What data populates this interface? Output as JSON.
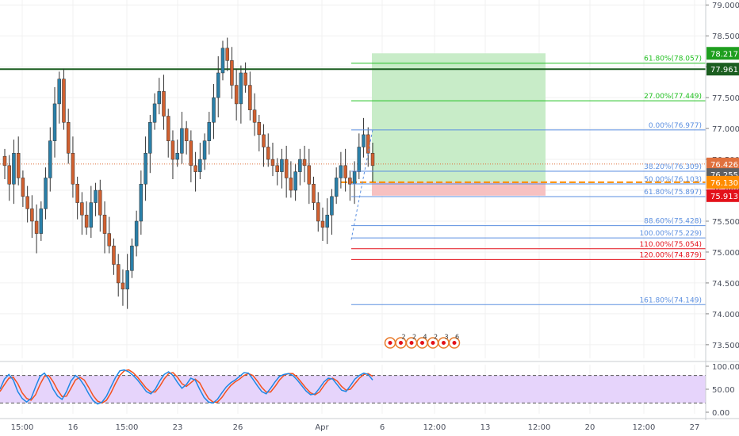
{
  "chart_data": {
    "type": "candlestick",
    "price_axis": {
      "labels": [
        "79.000",
        "78.500",
        "78.000",
        "77.500",
        "77.000",
        "76.500",
        "76.000",
        "75.500",
        "75.000",
        "74.500",
        "74.000",
        "73.500"
      ],
      "values": [
        79.0,
        78.5,
        78.0,
        77.5,
        77.0,
        76.5,
        76.0,
        75.5,
        75.0,
        74.5,
        74.0,
        73.5
      ],
      "range": [
        73.28,
        79.08
      ]
    },
    "time_axis": {
      "labels": [
        "15:00",
        "16",
        "15:00",
        "23",
        "26",
        "Apr",
        "6",
        "12:00",
        "13",
        "12:00",
        "20",
        "12:00",
        "27"
      ]
    },
    "price_tags": [
      {
        "label": "78.217",
        "value": 78.217,
        "color": "#1e9e1e"
      },
      {
        "label": "77.961",
        "value": 77.961,
        "color": "#1b5e20"
      },
      {
        "label": "76.426",
        "value": 76.426,
        "color": "#e0713e"
      },
      {
        "label": "76.255",
        "value": 76.255,
        "color": "#5f6062"
      },
      {
        "label": "76.130",
        "value": 76.13,
        "color": "#ff8c00"
      },
      {
        "label": "75.913",
        "value": 75.913,
        "color": "#e3111a"
      }
    ],
    "fib_levels": [
      {
        "label": "161.80%(74.149)",
        "value": 74.149,
        "color": "#5b8fe0"
      },
      {
        "label": "120.00%(74.879)",
        "value": 74.879,
        "color": "#e3111a"
      },
      {
        "label": "110.00%(75.054)",
        "value": 75.054,
        "color": "#e3111a"
      },
      {
        "label": "100.00%(75.229)",
        "value": 75.229,
        "color": "#5b8fe0"
      },
      {
        "label": "88.60%(75.428)",
        "value": 75.428,
        "color": "#5b8fe0"
      },
      {
        "label": "61.80%(75.897)",
        "value": 75.897,
        "color": "#5b8fe0"
      },
      {
        "label": "50.00%(76.103)",
        "value": 76.103,
        "color": "#5b8fe0"
      },
      {
        "label": "38.20%(76.309)",
        "value": 76.309,
        "color": "#5b8fe0"
      },
      {
        "label": "0.00%(76.977)",
        "value": 76.977,
        "color": "#5b8fe0"
      },
      {
        "label": "27.00%(77.449)",
        "value": 77.449,
        "color": "#22c022"
      },
      {
        "label": "61.80%(78.057)",
        "value": 78.057,
        "color": "#22c022"
      }
    ],
    "resistance_line": 77.961,
    "current_price": 76.426,
    "position": {
      "entry": 76.13,
      "stop": 75.913,
      "target": 78.217
    },
    "oscillator": {
      "labels": [
        "100.00",
        "50.00",
        "0.00"
      ],
      "values": [
        100,
        50,
        0
      ],
      "upper_band": 80,
      "lower_band": 20,
      "k": [
        50,
        72,
        82,
        70,
        45,
        30,
        22,
        30,
        55,
        78,
        85,
        72,
        50,
        35,
        28,
        45,
        68,
        80,
        72,
        58,
        40,
        25,
        18,
        22,
        35,
        55,
        75,
        90,
        92,
        88,
        80,
        70,
        58,
        45,
        40,
        50,
        68,
        82,
        88,
        80,
        65,
        52,
        60,
        74,
        70,
        50,
        32,
        22,
        20,
        28,
        42,
        55,
        64,
        70,
        78,
        86,
        85,
        72,
        58,
        45,
        40,
        52,
        66,
        78,
        82,
        84,
        80,
        70,
        58,
        46,
        38,
        40,
        52,
        66,
        74,
        72,
        60,
        48,
        45,
        58,
        72,
        80,
        85,
        82,
        70
      ],
      "d": [
        45,
        60,
        74,
        76,
        62,
        42,
        30,
        26,
        38,
        60,
        78,
        80,
        66,
        48,
        34,
        35,
        52,
        70,
        76,
        70,
        54,
        36,
        24,
        20,
        26,
        42,
        62,
        80,
        90,
        92,
        86,
        76,
        64,
        52,
        44,
        44,
        56,
        72,
        84,
        86,
        76,
        62,
        56,
        64,
        72,
        64,
        46,
        30,
        22,
        22,
        32,
        46,
        58,
        66,
        72,
        80,
        84,
        80,
        68,
        54,
        44,
        44,
        56,
        70,
        80,
        84,
        84,
        76,
        64,
        52,
        42,
        38,
        44,
        58,
        70,
        74,
        68,
        56,
        48,
        50,
        62,
        74,
        82,
        84,
        78
      ]
    },
    "event_markers": [
      "2",
      "2",
      "4",
      "2",
      "3",
      "6"
    ],
    "colors": {
      "up": "#2a7fa8",
      "down": "#d06030",
      "wick": "#333333",
      "bg_osc": "#e6d4fb",
      "grid": "#f0f0f0"
    }
  }
}
